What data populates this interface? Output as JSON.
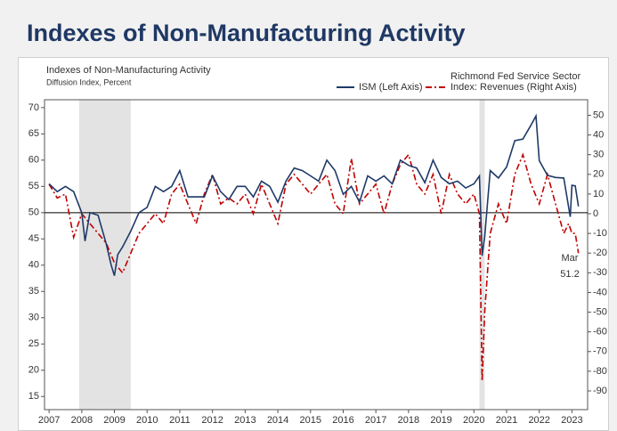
{
  "header": {
    "title": "Indexes of Non-Manufacturing Activity"
  },
  "chart_data": {
    "type": "line",
    "title": "Indexes of Non-Manufacturing Activity",
    "subtitle": "Diffusion Index, Percent",
    "xlim": [
      2006.86,
      2023.48
    ],
    "xticks": [
      2007,
      2008,
      2009,
      2010,
      2011,
      2012,
      2013,
      2014,
      2015,
      2016,
      2017,
      2018,
      2019,
      2020,
      2021,
      2022,
      2023
    ],
    "ylim": [
      12.5,
      71.5
    ],
    "yticks": [
      15,
      20,
      25,
      30,
      35,
      40,
      45,
      50,
      55,
      60,
      65,
      70
    ],
    "y2lim": [
      -99.5,
      57.9
    ],
    "y2ticks": [
      -90,
      -80,
      -70,
      -60,
      -50,
      -40,
      -30,
      -20,
      -10,
      0,
      10,
      20,
      30,
      40,
      50
    ],
    "hline": 50,
    "shaded_periods": [
      [
        2007.92,
        2009.5
      ],
      [
        2020.17,
        2020.33
      ]
    ],
    "shade_color": "#e3e3e3",
    "legend": "top-right",
    "annotations": [
      "Mar",
      "51.2"
    ],
    "series": [
      {
        "name": "ISM (Left Axis)",
        "color": "#1f3a68",
        "axis": "y",
        "dash": "solid",
        "x": [
          2007.0,
          2007.25,
          2007.5,
          2007.75,
          2008.0,
          2008.1,
          2008.25,
          2008.5,
          2008.75,
          2008.9,
          2009.0,
          2009.1,
          2009.25,
          2009.5,
          2009.75,
          2010.0,
          2010.25,
          2010.5,
          2010.75,
          2011.0,
          2011.25,
          2011.5,
          2011.75,
          2012.0,
          2012.25,
          2012.5,
          2012.75,
          2013.0,
          2013.25,
          2013.5,
          2013.75,
          2014.0,
          2014.25,
          2014.5,
          2014.75,
          2015.0,
          2015.25,
          2015.5,
          2015.75,
          2016.0,
          2016.25,
          2016.5,
          2016.75,
          2017.0,
          2017.25,
          2017.5,
          2017.75,
          2018.0,
          2018.25,
          2018.5,
          2018.75,
          2019.0,
          2019.25,
          2019.5,
          2019.75,
          2020.0,
          2020.17,
          2020.25,
          2020.33,
          2020.5,
          2020.75,
          2021.0,
          2021.25,
          2021.5,
          2021.75,
          2021.9,
          2022.0,
          2022.25,
          2022.5,
          2022.75,
          2022.95,
          2023.0,
          2023.1,
          2023.2
        ],
        "values": [
          55.5,
          54,
          55,
          54,
          50,
          44.6,
          50,
          49.5,
          44,
          40,
          38,
          42,
          43.5,
          46.5,
          50,
          51,
          55,
          54,
          55,
          58,
          53,
          53,
          53,
          57,
          54,
          52.5,
          55,
          55,
          53,
          56,
          55,
          52,
          56,
          58.5,
          58,
          57,
          56,
          60,
          58,
          53.5,
          55,
          52,
          57,
          56,
          57,
          55.5,
          60,
          59,
          58.5,
          55.7,
          60,
          56.7,
          55.5,
          56,
          54.7,
          55.5,
          57,
          41.8,
          45.4,
          58,
          56.6,
          58.7,
          63.7,
          64,
          66.7,
          68.4,
          59.9,
          57.1,
          56.7,
          56.6,
          49.2,
          55.2,
          55.1,
          51.2
        ]
      },
      {
        "name": "Richmond Fed Service Sector Index: Revenues (Right Axis)",
        "color": "#c00000",
        "axis": "y2",
        "dash": "dashdot",
        "x": [
          2007.0,
          2007.25,
          2007.5,
          2007.75,
          2008.0,
          2008.25,
          2008.5,
          2008.75,
          2009.0,
          2009.25,
          2009.5,
          2009.75,
          2010.0,
          2010.25,
          2010.5,
          2010.75,
          2011.0,
          2011.25,
          2011.5,
          2011.75,
          2012.0,
          2012.25,
          2012.5,
          2012.75,
          2013.0,
          2013.25,
          2013.5,
          2013.75,
          2014.0,
          2014.25,
          2014.5,
          2014.75,
          2015.0,
          2015.25,
          2015.5,
          2015.75,
          2016.0,
          2016.25,
          2016.5,
          2016.75,
          2017.0,
          2017.25,
          2017.5,
          2017.75,
          2018.0,
          2018.25,
          2018.5,
          2018.75,
          2019.0,
          2019.25,
          2019.5,
          2019.75,
          2020.0,
          2020.17,
          2020.25,
          2020.33,
          2020.5,
          2020.75,
          2021.0,
          2021.25,
          2021.5,
          2021.75,
          2022.0,
          2022.25,
          2022.5,
          2022.75,
          2022.9,
          2023.0,
          2023.1,
          2023.2
        ],
        "values": [
          15,
          8,
          10,
          -12,
          0,
          -5,
          -10,
          -15,
          -25,
          -30,
          -20,
          -10,
          -5,
          0,
          -5,
          10,
          15,
          5,
          -5,
          10,
          20,
          5,
          8,
          5,
          10,
          0,
          15,
          5,
          -5,
          15,
          20,
          15,
          10,
          15,
          20,
          5,
          0,
          28,
          5,
          10,
          15,
          0,
          15,
          25,
          30,
          15,
          10,
          20,
          0,
          20,
          10,
          5,
          10,
          0,
          -85,
          -50,
          -10,
          5,
          -5,
          20,
          30,
          15,
          5,
          20,
          5,
          -10,
          -5,
          -10,
          -10,
          -20
        ]
      }
    ]
  }
}
